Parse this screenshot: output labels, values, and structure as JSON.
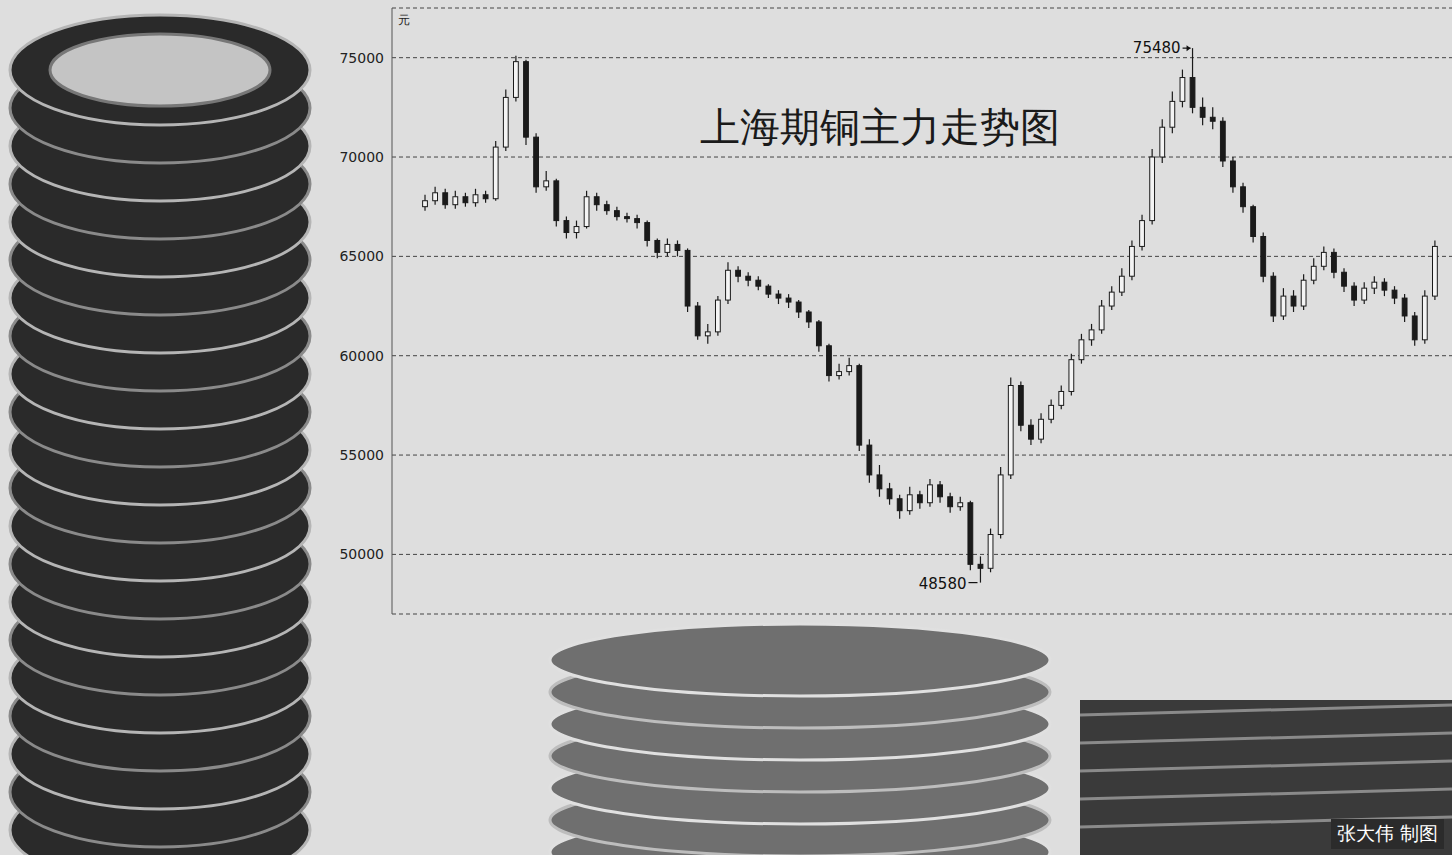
{
  "chart_data": {
    "type": "candlestick",
    "title": "上海期铜主力走势图",
    "credit": "张大伟 制图",
    "y_label": "元",
    "categories": [
      null,
      null,
      null,
      null,
      null,
      null,
      null,
      null,
      null,
      null,
      null,
      null,
      null,
      null,
      null,
      null,
      null,
      null,
      null,
      null,
      null,
      null,
      null,
      null,
      null,
      null,
      null,
      null,
      null,
      null,
      null,
      null,
      null,
      null,
      null,
      null,
      null,
      null,
      null,
      null,
      null,
      null,
      null,
      null,
      null,
      null,
      null,
      null,
      null,
      null,
      null,
      null,
      null,
      null,
      null,
      null,
      null,
      null,
      null,
      null,
      null,
      null,
      null,
      null,
      null,
      null,
      null,
      null,
      null,
      null,
      null,
      null,
      null,
      null,
      null,
      null,
      null,
      null,
      null,
      null,
      null,
      null,
      null,
      null,
      null,
      null,
      null,
      null,
      null,
      null,
      null,
      null,
      null,
      null,
      null,
      null,
      null,
      null,
      null,
      null,
      null
    ],
    "open": [
      67500,
      67800,
      68200,
      67600,
      68000,
      67700,
      68100,
      67900,
      70500,
      73000,
      74800,
      71000,
      68500,
      68800,
      66800,
      66200,
      66500,
      68000,
      67600,
      67300,
      67000,
      66900,
      66700,
      65800,
      65200,
      65600,
      65300,
      62500,
      61000,
      61200,
      62800,
      64300,
      64000,
      63800,
      63500,
      63100,
      62900,
      62700,
      62200,
      61700,
      60500,
      59000,
      59200,
      59500,
      55500,
      54000,
      53300,
      52800,
      52200,
      53000,
      52600,
      53500,
      52900,
      52400,
      52600,
      49500,
      49300,
      51000,
      54000,
      58500,
      56500,
      55800,
      56800,
      57500,
      58200,
      59800,
      60800,
      61300,
      62500,
      63200,
      64000,
      65500,
      66800,
      70000,
      71500,
      72800,
      74000,
      72500,
      72000,
      71800,
      69800,
      68500,
      67500,
      66000,
      64000,
      62000,
      63000,
      62500,
      63800,
      64500,
      65200,
      64200,
      63500,
      62800,
      63400,
      63700,
      63300,
      62900,
      62000,
      60800,
      63000
    ],
    "high": [
      68100,
      68500,
      68400,
      68300,
      68200,
      68400,
      68300,
      70800,
      73400,
      75100,
      74900,
      71200,
      69300,
      68900,
      67000,
      66800,
      68300,
      68200,
      67800,
      67500,
      67200,
      67100,
      66800,
      65900,
      65900,
      65800,
      65400,
      62700,
      61600,
      63000,
      64700,
      64500,
      64200,
      64000,
      63600,
      63300,
      63100,
      62800,
      62300,
      61800,
      60600,
      59600,
      59900,
      59600,
      55800,
      54500,
      53600,
      53000,
      53400,
      53200,
      53800,
      53700,
      53100,
      52900,
      52700,
      49900,
      51300,
      54400,
      58900,
      58700,
      56800,
      57100,
      57800,
      58500,
      60100,
      61100,
      61600,
      62800,
      63500,
      64400,
      65800,
      67100,
      70400,
      71900,
      73300,
      74400,
      75480,
      73000,
      72500,
      72000,
      70000,
      68700,
      67600,
      66200,
      64200,
      63400,
      63300,
      64100,
      64900,
      65500,
      65400,
      64400,
      63700,
      63700,
      64000,
      63900,
      63500,
      63100,
      62200,
      63300,
      65800
    ],
    "low": [
      67300,
      67600,
      67400,
      67400,
      67500,
      67500,
      67700,
      67800,
      70300,
      72800,
      70600,
      68200,
      68300,
      66500,
      65900,
      65900,
      66400,
      67300,
      67100,
      66800,
      66700,
      66400,
      65500,
      64900,
      65000,
      65000,
      62200,
      60800,
      60600,
      61000,
      62600,
      63700,
      63500,
      63300,
      62900,
      62600,
      62400,
      61900,
      61400,
      60200,
      58700,
      58800,
      59000,
      55200,
      53600,
      52900,
      52500,
      51800,
      52000,
      52300,
      52400,
      52600,
      52100,
      52200,
      49200,
      48580,
      49100,
      50800,
      53800,
      56200,
      55500,
      55600,
      56600,
      57300,
      58000,
      59600,
      60500,
      61100,
      62300,
      63000,
      63800,
      65300,
      66600,
      69700,
      71200,
      72500,
      72200,
      71600,
      71400,
      69500,
      68200,
      67200,
      65700,
      63700,
      61700,
      61800,
      62200,
      62300,
      63600,
      64300,
      63900,
      63200,
      62500,
      62600,
      63100,
      63000,
      62600,
      61700,
      60500,
      60600,
      62800
    ],
    "close": [
      67800,
      68200,
      67600,
      68000,
      67700,
      68100,
      67900,
      70500,
      73000,
      74800,
      71000,
      68500,
      68800,
      66800,
      66200,
      66500,
      68000,
      67600,
      67300,
      67000,
      66900,
      66700,
      65800,
      65200,
      65600,
      65300,
      62500,
      61000,
      61200,
      62800,
      64300,
      64000,
      63800,
      63500,
      63100,
      62900,
      62700,
      62200,
      61700,
      60500,
      59000,
      59200,
      59500,
      55500,
      54000,
      53300,
      52800,
      52200,
      53000,
      52600,
      53500,
      52900,
      52400,
      52600,
      49500,
      49300,
      51000,
      54000,
      58500,
      56500,
      55800,
      56800,
      57500,
      58200,
      59800,
      60800,
      61300,
      62500,
      63200,
      64000,
      65500,
      66800,
      70000,
      71500,
      72800,
      74000,
      72500,
      72000,
      71800,
      69800,
      68500,
      67500,
      66000,
      64000,
      62000,
      63000,
      62500,
      63800,
      64500,
      65200,
      64200,
      63500,
      62800,
      63400,
      63700,
      63300,
      62900,
      62000,
      60800,
      63000,
      65500
    ],
    "color": "#1a1a1a",
    "ylim": [
      47000,
      77500
    ],
    "yticks": [
      50000,
      55000,
      60000,
      65000,
      70000,
      75000
    ],
    "grid": true,
    "tick_labels": "y",
    "annotations": [
      {
        "text": "75480",
        "value": 75480
      },
      {
        "text": "48580",
        "value": 48580
      }
    ]
  }
}
